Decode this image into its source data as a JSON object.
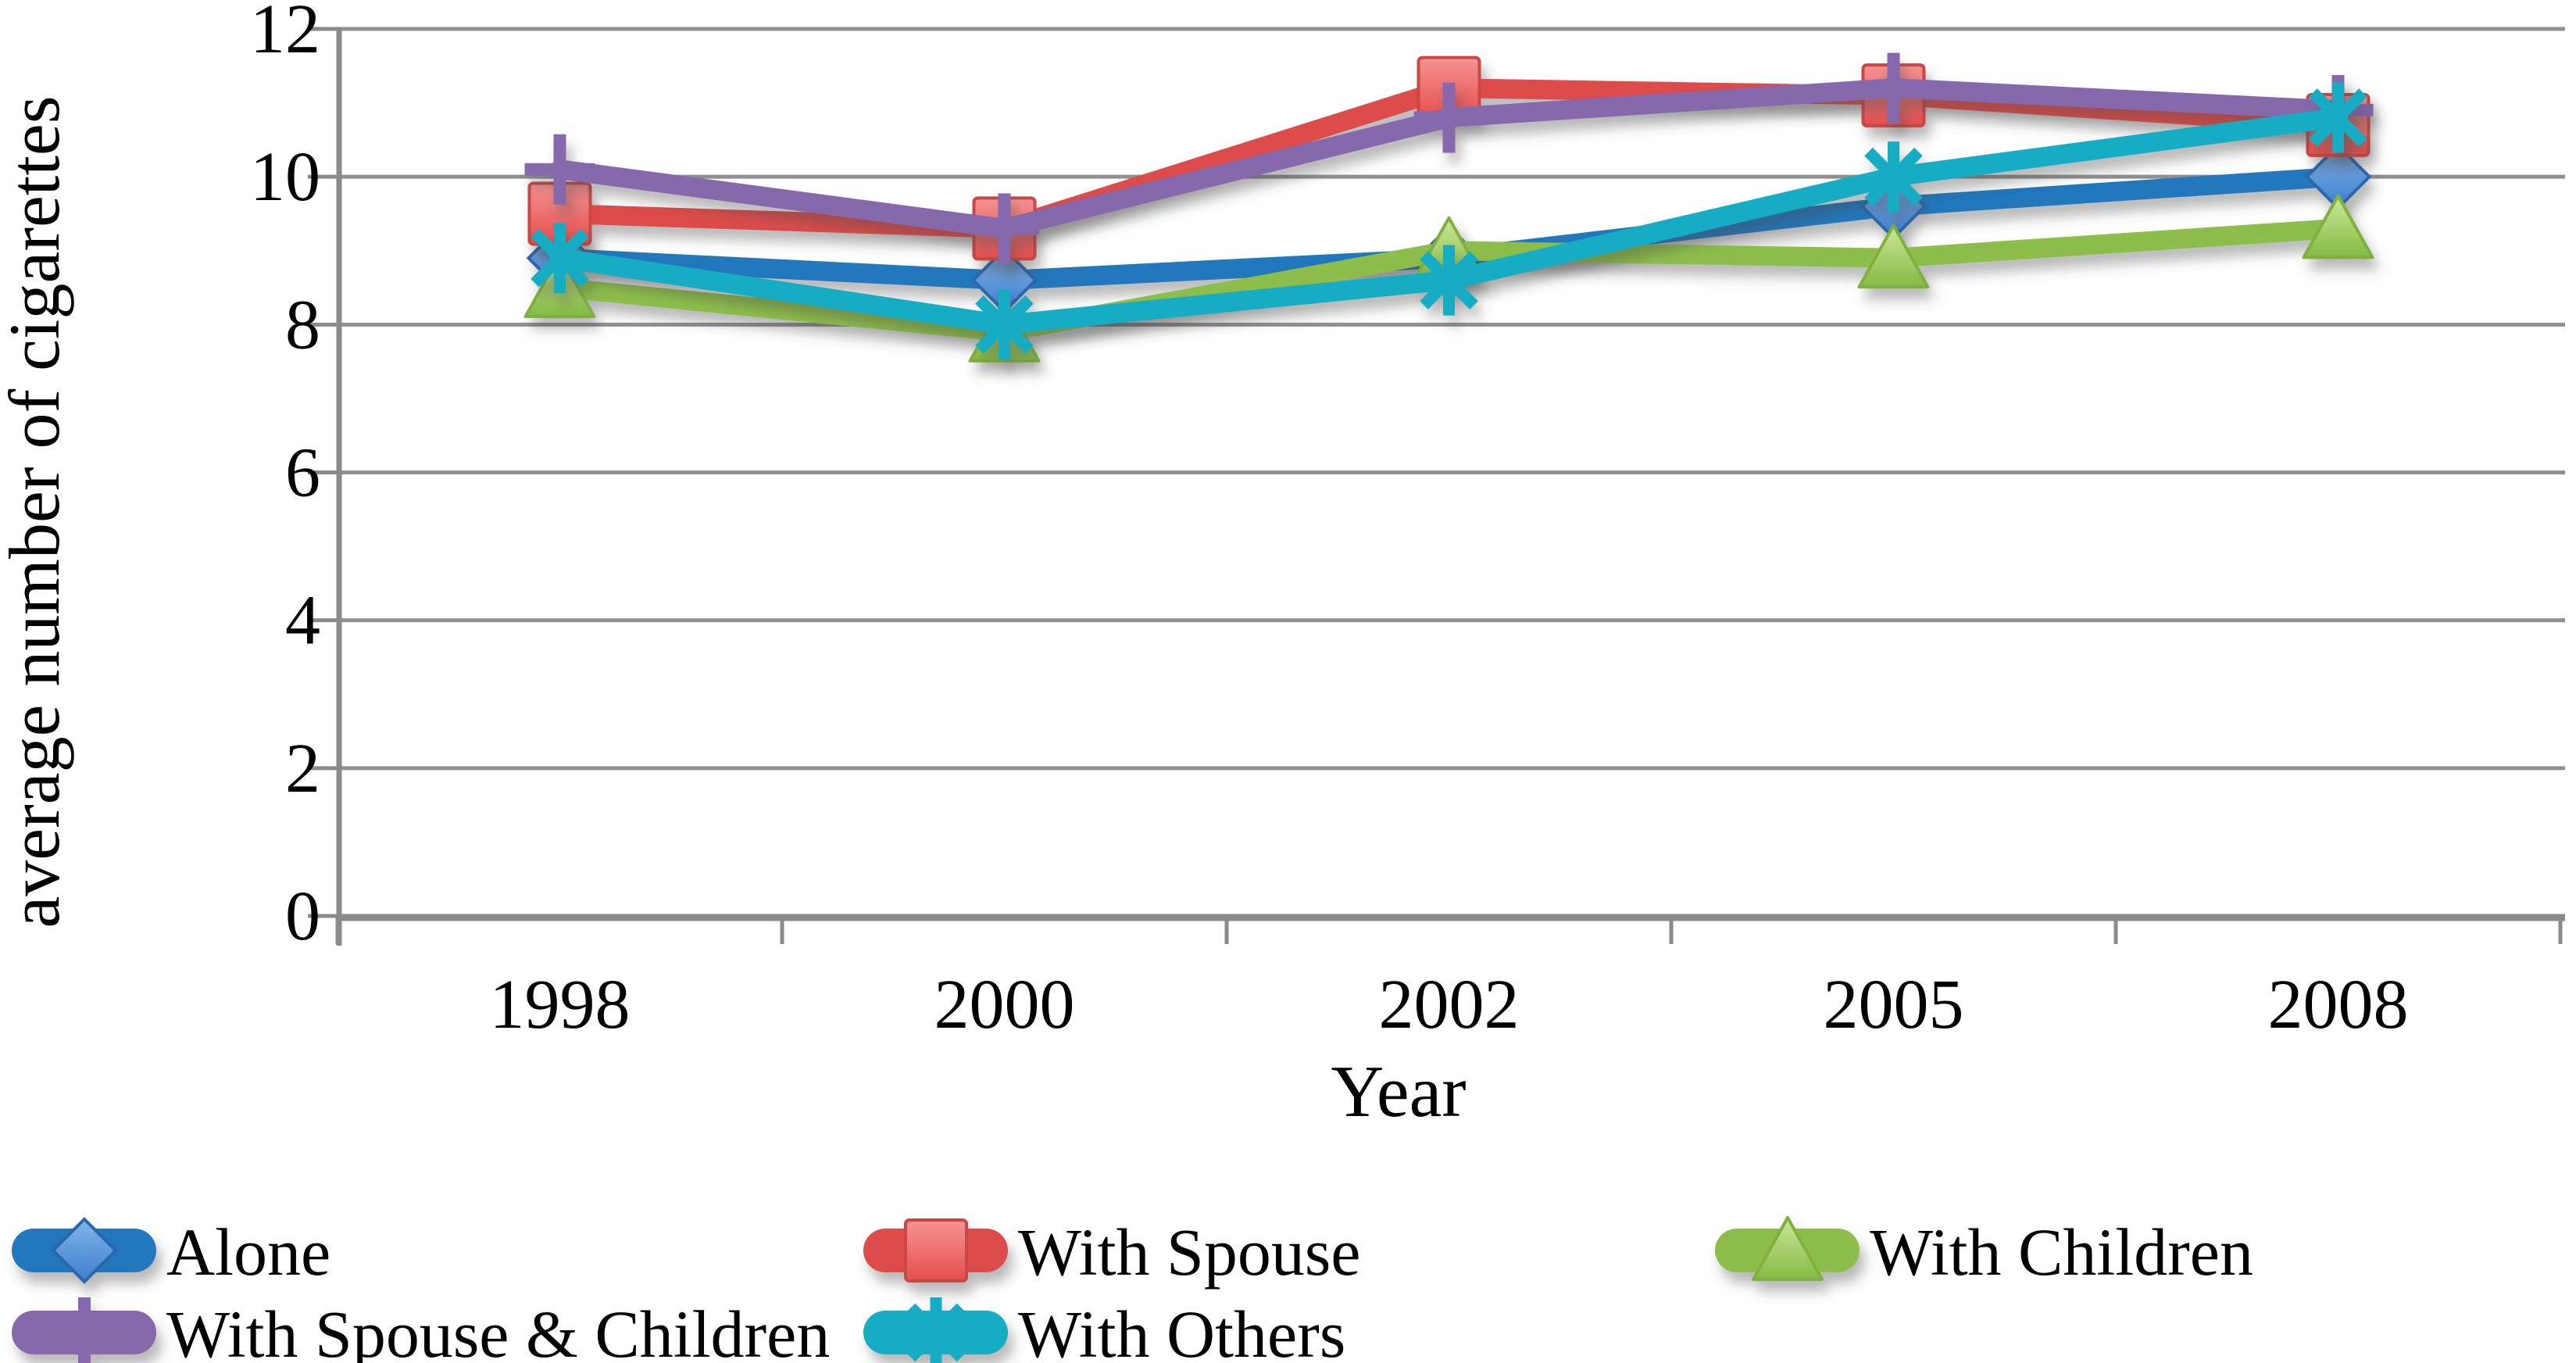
{
  "chart_data": {
    "type": "line",
    "title": "",
    "xlabel": "Year",
    "ylabel": "average number of cigarettes",
    "categories": [
      "1998",
      "2000",
      "2002",
      "2005",
      "2008"
    ],
    "ylim": [
      0,
      12
    ],
    "yticks": [
      0,
      2,
      4,
      6,
      8,
      10,
      12
    ],
    "grid": true,
    "legend_position": "bottom",
    "series": [
      {
        "name": "Alone",
        "marker": "diamond",
        "color": "#2377BD",
        "values": [
          8.9,
          8.6,
          8.9,
          9.6,
          10.0
        ]
      },
      {
        "name": "With Spouse",
        "marker": "square",
        "color": "#DD4B4C",
        "values": [
          9.5,
          9.3,
          11.2,
          11.1,
          10.7
        ]
      },
      {
        "name": "With Children",
        "marker": "triangle",
        "color": "#8DBE4C",
        "values": [
          8.5,
          7.9,
          9.0,
          8.9,
          9.3
        ]
      },
      {
        "name": "With Spouse & Children",
        "marker": "plus",
        "color": "#8668AC",
        "values": [
          10.1,
          9.3,
          10.8,
          11.2,
          10.9
        ]
      },
      {
        "name": "With Others",
        "marker": "asterisk",
        "color": "#13ACC4",
        "values": [
          8.9,
          8.0,
          8.6,
          10.0,
          10.8
        ]
      }
    ],
    "colors": {
      "gridline": "#909090",
      "axis": "#8a8a8a",
      "diamond_fill_top": "#82B4EA",
      "diamond_fill_bottom": "#3E7ECC",
      "diamond_stroke": "#2B67AE",
      "square_fill_top": "#F69292",
      "square_fill_bottom": "#E44F4D",
      "square_stroke": "#C94745",
      "triangle_fill_top": "#CBE79A",
      "triangle_fill_bottom": "#85BA43",
      "triangle_stroke": "#7FB040"
    }
  }
}
